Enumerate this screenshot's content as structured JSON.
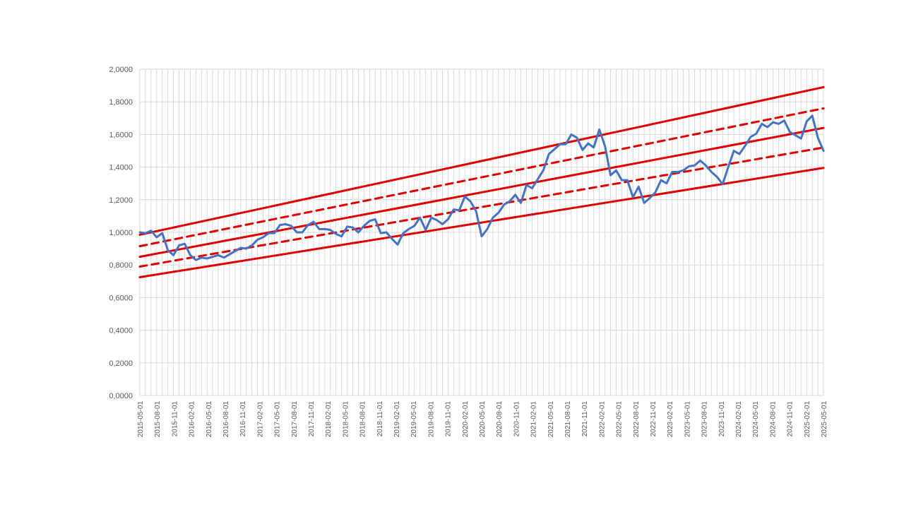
{
  "chart_data": {
    "type": "line",
    "title": "",
    "xlabel": "",
    "ylabel": "",
    "ylim": [
      0,
      2
    ],
    "yticks": [
      "0,0000",
      "0,2000",
      "0,4000",
      "0,6000",
      "0,8000",
      "1,0000",
      "1,2000",
      "1,4000",
      "1,6000",
      "1,8000",
      "2,0000"
    ],
    "xticks": [
      "2015-05-01",
      "2015-08-01",
      "2015-11-01",
      "2016-02-01",
      "2016-05-01",
      "2016-08-01",
      "2016-11-01",
      "2017-02-01",
      "2017-05-01",
      "2017-08-01",
      "2017-11-01",
      "2018-02-01",
      "2018-05-01",
      "2018-08-01",
      "2018-11-01",
      "2019-02-01",
      "2019-05-01",
      "2019-08-01",
      "2019-11-01",
      "2020-02-01",
      "2020-05-01",
      "2020-08-01",
      "2020-11-01",
      "2021-02-01",
      "2021-05-01",
      "2021-08-01",
      "2021-11-01",
      "2022-02-01",
      "2022-05-01",
      "2022-08-01",
      "2022-11-01",
      "2023-02-01",
      "2023-05-01",
      "2023-08-01",
      "2023-11-01",
      "2024-02-01",
      "2024-05-01",
      "2024-08-01",
      "2024-11-01",
      "2025-02-01",
      "2025-05-01"
    ],
    "grid": true,
    "legend": "none",
    "colors": {
      "price": "#4472c4",
      "trend": "#e00000",
      "grid": "#d9d9d9"
    },
    "series": [
      {
        "values": [
          1.0,
          0.995,
          1.01,
          0.97,
          0.995,
          0.89,
          0.86,
          0.92,
          0.93,
          0.86,
          0.83,
          0.845,
          0.84,
          0.85,
          0.86,
          0.845,
          0.865,
          0.885,
          0.905,
          0.9,
          0.92,
          0.955,
          0.97,
          0.995,
          0.995,
          1.045,
          1.05,
          1.04,
          1.0,
          1.0,
          1.045,
          1.065,
          1.02,
          1.02,
          1.015,
          0.99,
          0.975,
          1.035,
          1.03,
          1.0,
          1.04,
          1.07,
          1.08,
          0.995,
          1.0,
          0.96,
          0.925,
          0.995,
          1.02,
          1.04,
          1.09,
          1.015,
          1.09,
          1.075,
          1.05,
          1.08,
          1.14,
          1.135,
          1.22,
          1.19,
          1.13,
          0.975,
          1.02,
          1.09,
          1.12,
          1.17,
          1.19,
          1.23,
          1.18,
          1.29,
          1.27,
          1.325,
          1.38,
          1.48,
          1.51,
          1.54,
          1.54,
          1.6,
          1.58,
          1.505,
          1.545,
          1.52,
          1.63,
          1.53,
          1.35,
          1.38,
          1.32,
          1.32,
          1.215,
          1.28,
          1.18,
          1.21,
          1.245,
          1.32,
          1.3,
          1.37,
          1.37,
          1.38,
          1.405,
          1.41,
          1.44,
          1.41,
          1.37,
          1.34,
          1.295,
          1.4,
          1.5,
          1.48,
          1.53,
          1.585,
          1.605,
          1.665,
          1.645,
          1.675,
          1.665,
          1.685,
          1.615,
          1.595,
          1.575,
          1.68,
          1.715,
          1.58,
          1.5
        ]
      },
      {
        "line": "solid",
        "start": 0.985,
        "end": 1.89
      },
      {
        "line": "dashed",
        "start": 0.915,
        "end": 1.76
      },
      {
        "line": "solid",
        "start": 0.85,
        "end": 1.64
      },
      {
        "line": "dashed",
        "start": 0.79,
        "end": 1.52
      },
      {
        "line": "solid",
        "start": 0.725,
        "end": 1.395
      }
    ]
  }
}
